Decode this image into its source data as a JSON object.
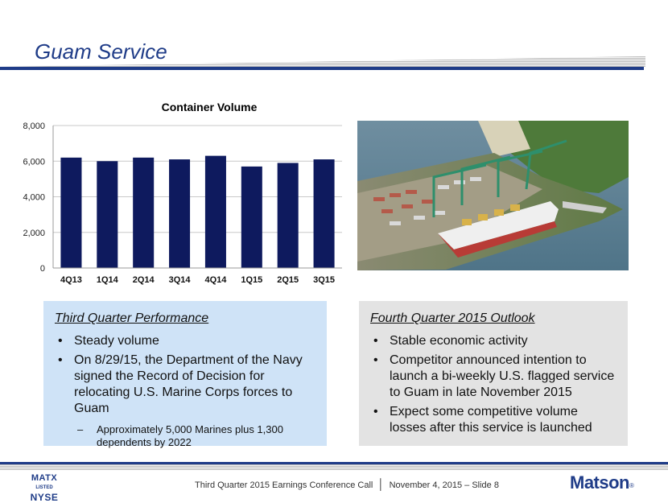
{
  "slide": {
    "title": "Guam Service"
  },
  "chart_data": {
    "type": "bar",
    "title": "Container Volume",
    "categories": [
      "4Q13",
      "1Q14",
      "2Q14",
      "3Q14",
      "4Q14",
      "1Q15",
      "2Q15",
      "3Q15"
    ],
    "values": [
      6200,
      6000,
      6200,
      6100,
      6300,
      5700,
      5900,
      6100
    ],
    "ylim": [
      0,
      8000
    ],
    "yticks": [
      0,
      2000,
      4000,
      6000,
      8000
    ],
    "ytick_labels": [
      "0",
      "2,000",
      "4,000",
      "6,000",
      "8,000"
    ],
    "grid": true,
    "bar_color": "#0e1a5e"
  },
  "photo": {
    "icon": "harbor-photo"
  },
  "left_panel": {
    "heading": "Third Quarter Performance",
    "bullets": [
      "Steady volume",
      "On 8/29/15, the Department of the Navy signed the Record of Decision for relocating U.S. Marine Corps forces to Guam"
    ],
    "sub_bullets": [
      "Approximately 5,000 Marines plus 1,300 dependents by 2022"
    ],
    "bullet_symbol": "•",
    "dash_symbol": "–"
  },
  "right_panel": {
    "heading": "Fourth Quarter 2015 Outlook",
    "bullets": [
      "Stable economic activity",
      "Competitor announced intention to launch a bi-weekly U.S. flagged service to Guam in late November 2015",
      "Expect some competitive volume losses after this service is launched"
    ],
    "bullet_symbol": "•"
  },
  "footer": {
    "ticker_line1": "MATX",
    "ticker_line2": "LISTED",
    "ticker_line3": "NYSE",
    "event_text": "Third Quarter 2015 Earnings Conference Call",
    "separator": "│",
    "date_text": "November 4, 2015 – Slide 8",
    "brand": "Matson",
    "brand_mark": "®"
  },
  "colors": {
    "accent": "#1f3c88",
    "left_panel_bg": "#cfe3f7",
    "right_panel_bg": "#e3e3e3"
  }
}
